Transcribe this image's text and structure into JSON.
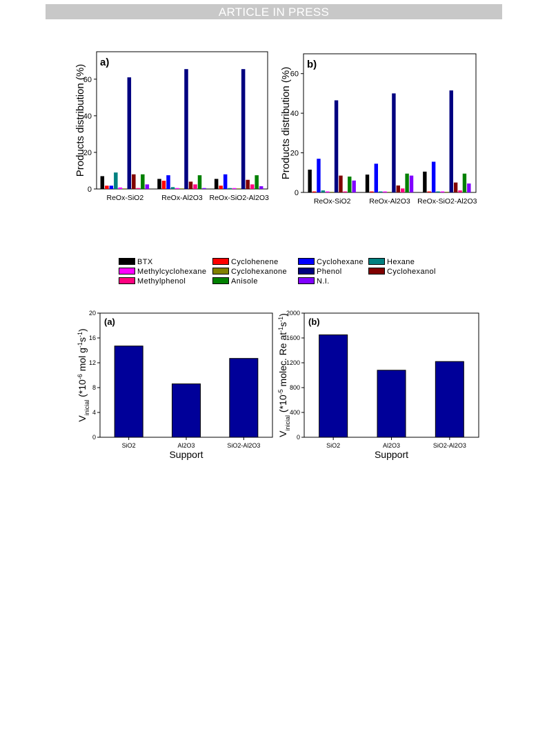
{
  "header": {
    "banner": "ARTICLE IN PRESS"
  },
  "legend": [
    {
      "label": "BTX",
      "color": "#000000"
    },
    {
      "label": "Cyclohenene",
      "color": "#ff0000"
    },
    {
      "label": "Cyclohexane",
      "color": "#0000ff"
    },
    {
      "label": "Hexane",
      "color": "#008080"
    },
    {
      "label": "Methylcyclohexane",
      "color": "#ff00ff"
    },
    {
      "label": "Cyclohexanone",
      "color": "#808000"
    },
    {
      "label": "Phenol",
      "color": "#000080"
    },
    {
      "label": "Cyclohexanol",
      "color": "#800000"
    },
    {
      "label": "Methylphenol",
      "color": "#ff0080"
    },
    {
      "label": "Anisole",
      "color": "#008000"
    },
    {
      "label": "N.I.",
      "color": "#8000ff"
    }
  ],
  "chart_data": [
    {
      "type": "bar",
      "panel_label": "a)",
      "categories": [
        "ReOx-SiO2",
        "ReOx-Al2O3",
        "ReOx-SiO2-Al2O3"
      ],
      "ylabel": "Products distribution (%)",
      "ylim": [
        0,
        75
      ],
      "yticks": [
        0,
        20,
        40,
        60
      ],
      "series": [
        {
          "name": "BTX",
          "values": [
            7,
            5.5,
            5.5
          ]
        },
        {
          "name": "Cyclohenene",
          "values": [
            1.8,
            4.5,
            1.8
          ]
        },
        {
          "name": "Cyclohexane",
          "values": [
            1.8,
            7.5,
            8
          ]
        },
        {
          "name": "Hexane",
          "values": [
            9,
            1,
            0.5
          ]
        },
        {
          "name": "Methylcyclohexane",
          "values": [
            0.8,
            0.5,
            0.5
          ]
        },
        {
          "name": "Cyclohexanone",
          "values": [
            0.3,
            0.3,
            0.3
          ]
        },
        {
          "name": "Phenol",
          "values": [
            61,
            65.5,
            65.5
          ]
        },
        {
          "name": "Cyclohexanol",
          "values": [
            8,
            4,
            5
          ]
        },
        {
          "name": "Methylphenol",
          "values": [
            0.5,
            2.5,
            2.5
          ]
        },
        {
          "name": "Anisole",
          "values": [
            8,
            7.5,
            7.5
          ]
        },
        {
          "name": "N.I.",
          "values": [
            2.5,
            0.5,
            1.5
          ]
        }
      ]
    },
    {
      "type": "bar",
      "panel_label": "b)",
      "categories": [
        "ReOx-SiO2",
        "ReOx-Al2O3",
        "ReOx-SiO2-Al2O3"
      ],
      "ylabel": "Products distribution (%)",
      "ylim": [
        0,
        70
      ],
      "yticks": [
        0,
        20,
        40,
        60
      ],
      "series": [
        {
          "name": "BTX",
          "values": [
            11.5,
            9,
            10.5
          ]
        },
        {
          "name": "Cyclohenene",
          "values": [
            0.5,
            0.5,
            0.5
          ]
        },
        {
          "name": "Cyclohexane",
          "values": [
            17,
            14.5,
            15.5
          ]
        },
        {
          "name": "Hexane",
          "values": [
            1,
            0.5,
            0.5
          ]
        },
        {
          "name": "Methylcyclohexane",
          "values": [
            0.5,
            0.5,
            0.5
          ]
        },
        {
          "name": "Cyclohexanone",
          "values": [
            0.3,
            0.3,
            0.3
          ]
        },
        {
          "name": "Phenol",
          "values": [
            46.5,
            50,
            51.5
          ]
        },
        {
          "name": "Cyclohexanol",
          "values": [
            8.5,
            3.5,
            5
          ]
        },
        {
          "name": "Methylphenol",
          "values": [
            0.5,
            2,
            1
          ]
        },
        {
          "name": "Anisole",
          "values": [
            8,
            9.5,
            9.5
          ]
        },
        {
          "name": "N.I.",
          "values": [
            6,
            8.5,
            4.5
          ]
        }
      ]
    },
    {
      "type": "bar",
      "panel_label": "(a)",
      "categories": [
        "SiO2",
        "Al2O3",
        "SiO2-Al2O3"
      ],
      "values": [
        14.7,
        8.6,
        12.7
      ],
      "xlabel": "Support",
      "ylabel_main": "V",
      "ylabel_sub": "inicial",
      "ylabel_rest": " (*10",
      "ylabel_exp": "-6",
      "ylabel_unit": " mol g",
      "ylabel_unit_exp": "-1",
      "ylabel_s": "s",
      "ylabel_s_exp": "-1",
      "ylabel_close": ")",
      "ylim": [
        0,
        20
      ],
      "yticks": [
        0,
        4,
        8,
        12,
        16,
        20
      ],
      "bar_color": "#000099"
    },
    {
      "type": "bar",
      "panel_label": "(b)",
      "categories": [
        "SiO2",
        "Al2O3",
        "SiO2-Al2O3"
      ],
      "values": [
        1650,
        1080,
        1220
      ],
      "xlabel": "Support",
      "ylabel_main": "V",
      "ylabel_sub": "inicial",
      "ylabel_rest": " (*10",
      "ylabel_exp": "-5",
      "ylabel_unit": " molec. Re at",
      "ylabel_unit_exp": "-1",
      "ylabel_s": "s",
      "ylabel_s_exp": "-1",
      "ylabel_close": ")",
      "ylim": [
        0,
        2000
      ],
      "yticks": [
        0,
        400,
        800,
        1200,
        1600,
        2000
      ],
      "bar_color": "#000099"
    }
  ]
}
